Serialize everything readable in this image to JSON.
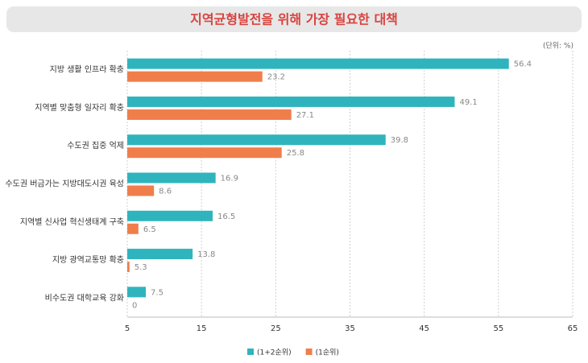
{
  "chart_data": {
    "type": "bar",
    "orientation": "horizontal",
    "title": "지역균형발전을 위해 가장 필요한 대책",
    "unit_note": "(단위: %)",
    "categories": [
      "지방 생활 인프라 확충",
      "지역별 맞춤형 일자리 확충",
      "수도권 집중 억제",
      "수도권 버금가는 지방대도시권 육성",
      "지역별 신사업 혁신생태계 구축",
      "지방 광역교통망 확충",
      "비수도권 대학교육 강화"
    ],
    "series": [
      {
        "name": "(1+2순위)",
        "color": "#2fb4bd",
        "values": [
          56.4,
          49.1,
          39.8,
          16.9,
          16.5,
          13.8,
          7.5
        ]
      },
      {
        "name": "(1순위)",
        "color": "#f07e4b",
        "values": [
          23.2,
          27.1,
          25.8,
          8.6,
          6.5,
          5.3,
          0
        ]
      }
    ],
    "xlim": [
      5,
      65
    ],
    "xticks": [
      5,
      15,
      25,
      35,
      45,
      55,
      65
    ],
    "grid": true
  }
}
